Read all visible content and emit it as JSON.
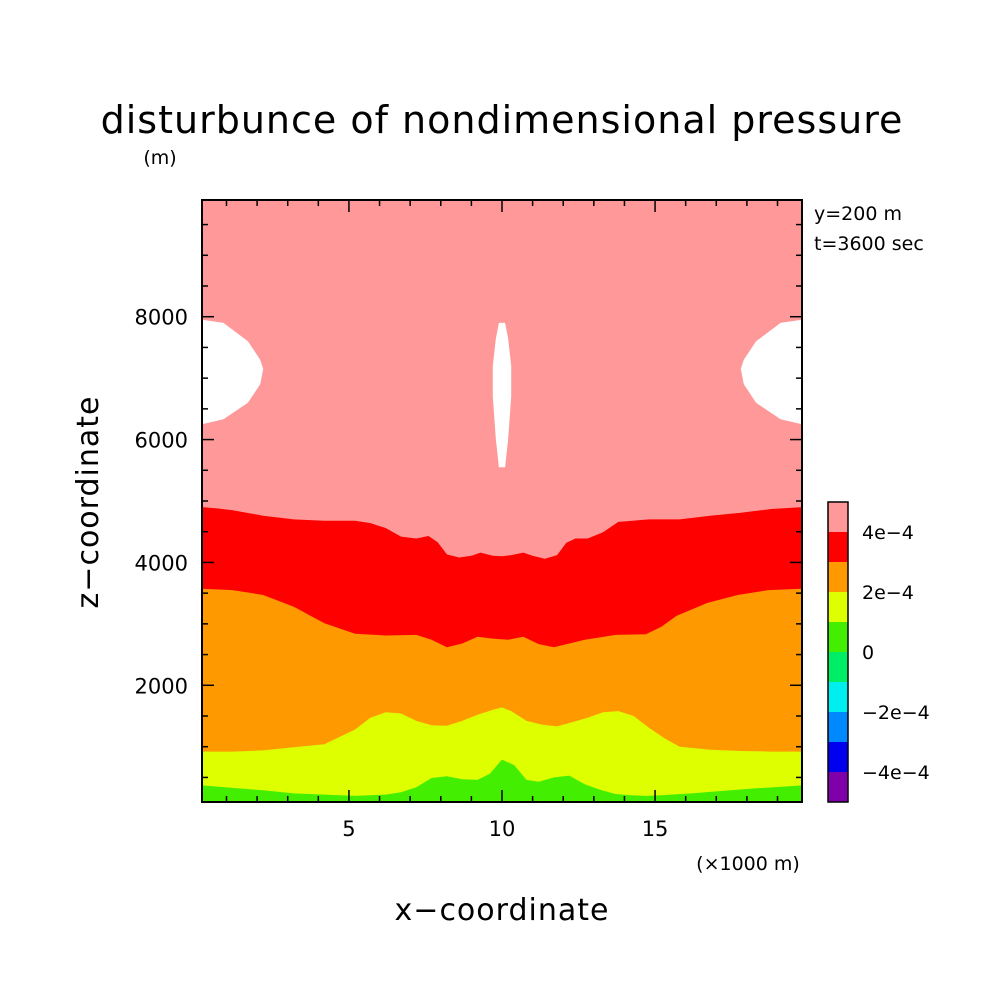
{
  "chart_data": {
    "type": "heatmap",
    "title": "disturbunce of nondimensional pressure",
    "xlabel": "x−coordinate",
    "ylabel": "z−coordinate",
    "x_unit": "(×1000 m)",
    "y_unit": "(m)",
    "annotations": [
      "y=200 m",
      "t=3600 sec"
    ],
    "xlim": [
      0.2,
      19.8
    ],
    "ylim": [
      100,
      9900
    ],
    "x_ticks": [
      5,
      10,
      15
    ],
    "x_tick_labels": [
      "5",
      "10",
      "15"
    ],
    "y_ticks": [
      2000,
      4000,
      6000,
      8000
    ],
    "y_tick_labels": [
      "2000",
      "4000",
      "6000",
      "8000"
    ],
    "grid": false,
    "legend_position": "right",
    "colorbar": {
      "levels": [
        {
          "range": [
            -0.0005,
            -0.0004
          ],
          "color": "#7f00a8"
        },
        {
          "range": [
            -0.0004,
            -0.0003
          ],
          "color": "#0000ee"
        },
        {
          "range": [
            -0.0003,
            -0.0002
          ],
          "color": "#0088ff"
        },
        {
          "range": [
            -0.0002,
            -0.0001
          ],
          "color": "#00eeee"
        },
        {
          "range": [
            -0.0001,
            0
          ],
          "color": "#00ee66"
        },
        {
          "range": [
            0,
            0.0001
          ],
          "color": "#44ee00"
        },
        {
          "range": [
            0.0001,
            0.0002
          ],
          "color": "#ddff00"
        },
        {
          "range": [
            0.0002,
            0.0003
          ],
          "color": "#ff9900"
        },
        {
          "range": [
            0.0003,
            0.0004
          ],
          "color": "#ff0000"
        },
        {
          "range": [
            0.0004,
            0.0005
          ],
          "color": "#ff9999"
        }
      ],
      "tick_labels": [
        "4e−4",
        "2e−4",
        "0",
        "−2e−4",
        "−4e−4"
      ],
      "tick_values": [
        0.0004,
        0.0002,
        0,
        -0.0002,
        -0.0004
      ]
    },
    "contours": [
      {
        "name": "upper-boundary-3e-4",
        "x": [
          0.2,
          0.7,
          1.2,
          2.2,
          3.2,
          4.2,
          5.2,
          5.7,
          6.2,
          6.7,
          7.2,
          7.6,
          7.9,
          8.2,
          8.6,
          9.0,
          9.3,
          9.7,
          10.0,
          10.3,
          10.7,
          11.0,
          11.4,
          11.8,
          12.1,
          12.4,
          12.8,
          13.3,
          13.8,
          14.8,
          15.8,
          16.8,
          17.8,
          18.8,
          19.8
        ],
        "y": [
          4900,
          4880,
          4850,
          4760,
          4700,
          4680,
          4680,
          4640,
          4560,
          4420,
          4390,
          4430,
          4330,
          4130,
          4080,
          4110,
          4160,
          4110,
          4100,
          4120,
          4160,
          4110,
          4060,
          4120,
          4320,
          4390,
          4390,
          4490,
          4660,
          4700,
          4700,
          4760,
          4810,
          4870,
          4900
        ]
      },
      {
        "name": "upper-boundary-2e-4",
        "x": [
          0.2,
          1.2,
          2.2,
          3.2,
          4.2,
          5.2,
          6.2,
          7.2,
          7.7,
          8.2,
          8.7,
          9.2,
          9.7,
          10.2,
          10.7,
          11.2,
          11.7,
          12.2,
          12.7,
          13.2,
          13.7,
          14.7,
          15.2,
          15.7,
          16.7,
          17.7,
          18.7,
          19.8
        ],
        "y": [
          3570,
          3550,
          3470,
          3280,
          3010,
          2840,
          2810,
          2820,
          2740,
          2620,
          2680,
          2790,
          2760,
          2740,
          2790,
          2670,
          2620,
          2680,
          2740,
          2780,
          2820,
          2830,
          2950,
          3130,
          3340,
          3470,
          3550,
          3570
        ]
      },
      {
        "name": "upper-boundary-1e-4",
        "x": [
          0.2,
          1.2,
          2.2,
          3.2,
          4.2,
          5.2,
          5.7,
          6.2,
          6.7,
          7.2,
          7.7,
          8.2,
          8.7,
          9.2,
          9.7,
          10.0,
          10.3,
          10.8,
          11.3,
          11.8,
          12.3,
          12.8,
          13.3,
          13.8,
          14.3,
          14.8,
          15.3,
          15.8,
          16.8,
          17.8,
          18.8,
          19.8
        ],
        "y": [
          920,
          920,
          940,
          990,
          1040,
          1280,
          1470,
          1560,
          1540,
          1420,
          1350,
          1340,
          1420,
          1520,
          1600,
          1640,
          1580,
          1420,
          1360,
          1330,
          1400,
          1470,
          1560,
          1580,
          1500,
          1310,
          1140,
          1000,
          950,
          930,
          920,
          920
        ]
      },
      {
        "name": "upper-boundary-0",
        "x": [
          0.2,
          1.2,
          2.2,
          3.2,
          4.2,
          5.2,
          6.2,
          6.7,
          7.2,
          7.7,
          8.2,
          8.7,
          9.2,
          9.6,
          10.0,
          10.4,
          10.8,
          11.2,
          11.7,
          12.2,
          12.7,
          13.2,
          13.7,
          14.2,
          14.7,
          15.2,
          16.2,
          17.2,
          18.2,
          19.2,
          19.8
        ],
        "y": [
          370,
          330,
          290,
          240,
          220,
          200,
          220,
          260,
          340,
          490,
          520,
          470,
          460,
          560,
          790,
          700,
          460,
          430,
          500,
          530,
          390,
          300,
          230,
          210,
          200,
          210,
          240,
          280,
          320,
          350,
          370
        ]
      },
      {
        "name": "white-region-left",
        "x": [
          0.2,
          0.9,
          1.7,
          2.1,
          2.2,
          2.1,
          1.7,
          0.9,
          0.2
        ],
        "y": [
          7950,
          7900,
          7600,
          7300,
          7150,
          6900,
          6600,
          6330,
          6250
        ]
      },
      {
        "name": "white-region-right",
        "x": [
          19.8,
          19.1,
          18.3,
          17.9,
          17.8,
          17.9,
          18.3,
          19.1,
          19.8
        ],
        "y": [
          7950,
          7900,
          7600,
          7300,
          7150,
          6900,
          6600,
          6330,
          6250
        ]
      },
      {
        "name": "white-region-center",
        "x": [
          9.9,
          10.1,
          10.2,
          10.3,
          10.3,
          10.2,
          10.1,
          9.9,
          9.8,
          9.7,
          9.7,
          9.8
        ],
        "y": [
          7900,
          7900,
          7650,
          7200,
          6700,
          6000,
          5550,
          5550,
          6000,
          6700,
          7200,
          7650
        ]
      }
    ]
  }
}
